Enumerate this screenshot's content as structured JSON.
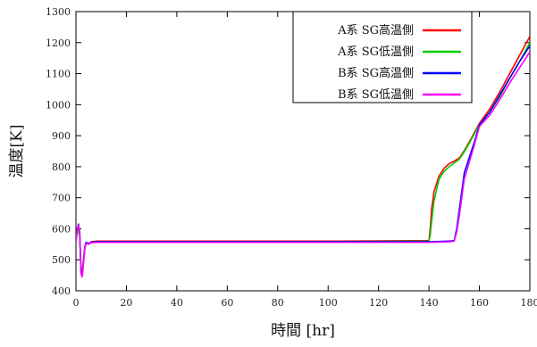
{
  "chart_data": {
    "type": "line",
    "title": "",
    "xlabel": "時間 [hr]",
    "ylabel": "温度[K]",
    "xlim": [
      0,
      180
    ],
    "ylim": [
      400,
      1300
    ],
    "xticks": [
      0,
      20,
      40,
      60,
      80,
      100,
      120,
      140,
      160,
      180
    ],
    "yticks": [
      400,
      500,
      600,
      700,
      800,
      900,
      1000,
      1100,
      1200,
      1300
    ],
    "grid": false,
    "legend_position": "top-right",
    "series": [
      {
        "name": "A系 SG高温側",
        "color": "#ff0000",
        "x": [
          0,
          0.5,
          1,
          1.5,
          2,
          2.5,
          3,
          3.5,
          4,
          5,
          6,
          8,
          10,
          20,
          60,
          100,
          140,
          140.5,
          141,
          142,
          144,
          146,
          148,
          150,
          152,
          154,
          156,
          158,
          160,
          164,
          168,
          172,
          176,
          180
        ],
        "y": [
          560,
          590,
          600,
          580,
          470,
          460,
          500,
          540,
          555,
          552,
          558,
          560,
          560,
          560,
          560,
          560,
          562,
          600,
          660,
          720,
          770,
          795,
          810,
          818,
          828,
          852,
          880,
          910,
          940,
          985,
          1040,
          1100,
          1160,
          1220
        ]
      },
      {
        "name": "A系 SG低温側",
        "color": "#00cc00",
        "x": [
          0,
          0.5,
          1,
          1.5,
          2,
          2.5,
          3,
          3.5,
          4,
          5,
          6,
          8,
          10,
          20,
          60,
          100,
          140,
          140.5,
          141,
          142,
          144,
          146,
          148,
          150,
          152,
          154,
          156,
          158,
          160,
          164,
          168,
          172,
          176,
          180
        ],
        "y": [
          560,
          585,
          595,
          575,
          465,
          455,
          495,
          535,
          552,
          550,
          556,
          558,
          558,
          558,
          558,
          558,
          560,
          580,
          620,
          690,
          760,
          785,
          800,
          812,
          824,
          848,
          876,
          906,
          936,
          975,
          1025,
          1085,
          1140,
          1200
        ]
      },
      {
        "name": "B系 SG高温側",
        "color": "#0000ff",
        "x": [
          0,
          0.5,
          1,
          1.5,
          2,
          2.5,
          3,
          3.5,
          4,
          5,
          6,
          8,
          10,
          20,
          60,
          100,
          140,
          148,
          150,
          151,
          152,
          153,
          154,
          156,
          158,
          160,
          164,
          168,
          172,
          176,
          180
        ],
        "y": [
          560,
          600,
          615,
          590,
          460,
          450,
          495,
          540,
          556,
          552,
          557,
          558,
          558,
          558,
          558,
          558,
          558,
          560,
          562,
          600,
          660,
          720,
          780,
          830,
          880,
          935,
          975,
          1030,
          1085,
          1140,
          1190
        ]
      },
      {
        "name": "B系 SG低温側",
        "color": "#ff00ff",
        "x": [
          0,
          0.5,
          1,
          1.5,
          2,
          2.5,
          3,
          3.5,
          4,
          5,
          6,
          8,
          10,
          20,
          60,
          100,
          140,
          148,
          150,
          151,
          152,
          153,
          154,
          156,
          158,
          160,
          164,
          168,
          172,
          176,
          180
        ],
        "y": [
          558,
          598,
          612,
          588,
          455,
          445,
          490,
          535,
          553,
          550,
          555,
          556,
          556,
          556,
          556,
          556,
          556,
          558,
          560,
          590,
          640,
          700,
          760,
          815,
          870,
          930,
          965,
          1015,
          1070,
          1120,
          1170
        ]
      }
    ]
  }
}
